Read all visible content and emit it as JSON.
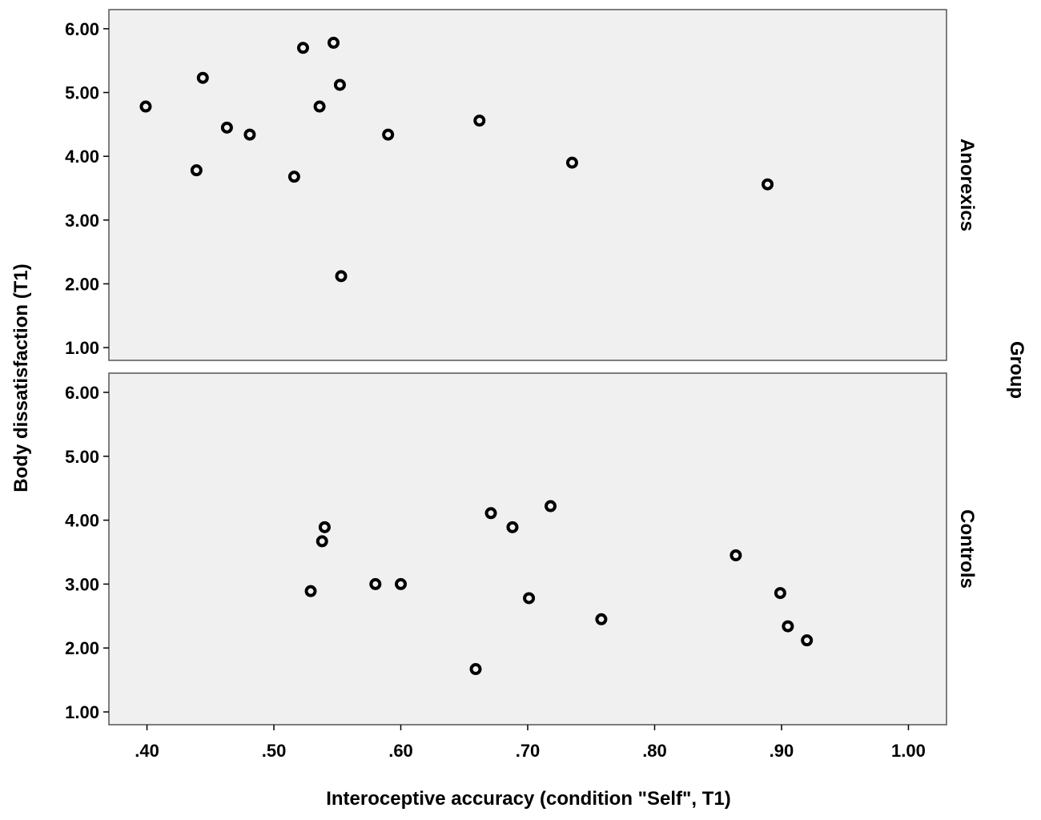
{
  "chart_data": {
    "type": "scatter",
    "xlabel": "Interoceptive accuracy (condition \"Self\", T1)",
    "ylabel": "Body dissatisfaction (T1)",
    "facet_title": "Group",
    "xlim": [
      0.37,
      1.03
    ],
    "ylim": [
      0.8,
      6.3
    ],
    "x_ticks": [
      0.4,
      0.5,
      0.6,
      0.7,
      0.8,
      0.9,
      1.0
    ],
    "x_tick_labels": [
      ".40",
      ".50",
      ".60",
      ".70",
      ".80",
      ".90",
      "1.00"
    ],
    "y_ticks": [
      1,
      2,
      3,
      4,
      5,
      6
    ],
    "y_tick_labels": [
      "1.00",
      "2.00",
      "3.00",
      "4.00",
      "5.00",
      "6.00"
    ],
    "grid": false,
    "panels": [
      {
        "group": "Anorexics",
        "points": [
          {
            "x": 0.399,
            "y": 4.78
          },
          {
            "x": 0.439,
            "y": 3.78
          },
          {
            "x": 0.444,
            "y": 5.23
          },
          {
            "x": 0.463,
            "y": 4.45
          },
          {
            "x": 0.481,
            "y": 4.34
          },
          {
            "x": 0.516,
            "y": 3.68
          },
          {
            "x": 0.523,
            "y": 5.7
          },
          {
            "x": 0.536,
            "y": 4.78
          },
          {
            "x": 0.547,
            "y": 5.78
          },
          {
            "x": 0.552,
            "y": 5.12
          },
          {
            "x": 0.553,
            "y": 2.12
          },
          {
            "x": 0.59,
            "y": 4.34
          },
          {
            "x": 0.662,
            "y": 4.56
          },
          {
            "x": 0.735,
            "y": 3.9
          },
          {
            "x": 0.889,
            "y": 3.56
          }
        ]
      },
      {
        "group": "Controls",
        "points": [
          {
            "x": 0.529,
            "y": 2.89
          },
          {
            "x": 0.538,
            "y": 3.67
          },
          {
            "x": 0.54,
            "y": 3.89
          },
          {
            "x": 0.58,
            "y": 3.0
          },
          {
            "x": 0.6,
            "y": 3.0
          },
          {
            "x": 0.659,
            "y": 1.67
          },
          {
            "x": 0.671,
            "y": 4.11
          },
          {
            "x": 0.688,
            "y": 3.89
          },
          {
            "x": 0.701,
            "y": 2.78
          },
          {
            "x": 0.718,
            "y": 4.22
          },
          {
            "x": 0.758,
            "y": 2.45
          },
          {
            "x": 0.864,
            "y": 3.45
          },
          {
            "x": 0.899,
            "y": 2.86
          },
          {
            "x": 0.905,
            "y": 2.34
          },
          {
            "x": 0.92,
            "y": 2.12
          }
        ]
      }
    ]
  }
}
